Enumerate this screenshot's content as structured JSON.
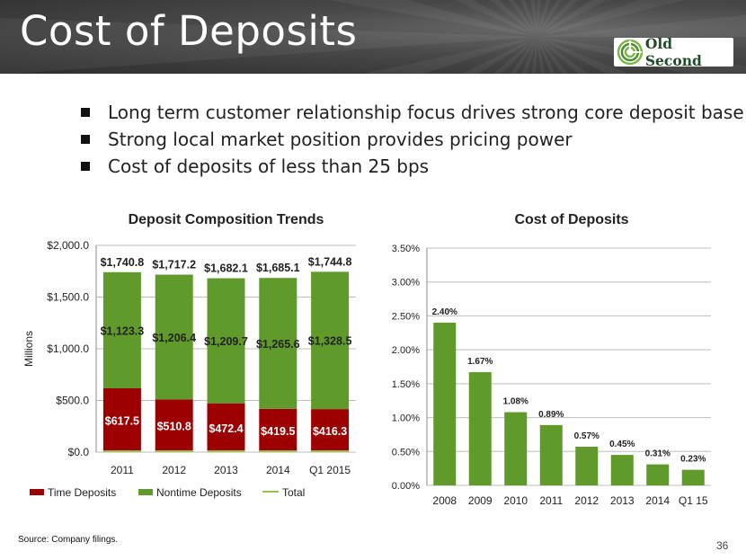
{
  "header": {
    "title": "Cost of Deposits",
    "logo_text": "Old Second"
  },
  "bullets": [
    "Long term customer relationship focus drives strong core deposit base",
    "Strong local market position provides pricing power",
    "Cost of deposits of less than 25 bps"
  ],
  "chart_data": [
    {
      "type": "bar",
      "stacked": true,
      "title": "Deposit Composition Trends",
      "ylabel": "Millions",
      "ylim": [
        0,
        2000
      ],
      "yticks": [
        "$0.0",
        "$500.0",
        "$1,000.0",
        "$1,500.0",
        "$2,000.0"
      ],
      "categories": [
        "2011",
        "2012",
        "2013",
        "2014",
        "Q1 2015"
      ],
      "series": [
        {
          "name": "Time Deposits",
          "color": "#9c0000",
          "values": [
            617.5,
            510.8,
            472.4,
            419.5,
            416.3
          ],
          "labels": [
            "$617.5",
            "$510.8",
            "$472.4",
            "$419.5",
            "$416.3"
          ]
        },
        {
          "name": "Nontime Deposits",
          "color": "#5f9a2a",
          "values": [
            1123.3,
            1206.4,
            1209.7,
            1265.6,
            1328.5
          ],
          "labels": [
            "$1,123.3",
            "$1,206.4",
            "$1,209.7",
            "$1,265.6",
            "$1,328.5"
          ]
        },
        {
          "name": "Total",
          "color": "#9bc34a",
          "values": [
            1740.8,
            1717.2,
            1682.1,
            1685.1,
            1744.8
          ],
          "labels": [
            "$1,740.8",
            "$1,717.2",
            "$1,682.1",
            "$1,685.1",
            "$1,744.8"
          ]
        }
      ],
      "grid": true,
      "legend": "bottom"
    },
    {
      "type": "bar",
      "title": "Cost of Deposits",
      "ylim": [
        0,
        3.5
      ],
      "yticks": [
        "0.00%",
        "0.50%",
        "1.00%",
        "1.50%",
        "2.00%",
        "2.50%",
        "3.00%",
        "3.50%"
      ],
      "categories": [
        "2008",
        "2009",
        "2010",
        "2011",
        "2012",
        "2013",
        "2014",
        "Q1 15"
      ],
      "values": [
        2.4,
        1.67,
        1.08,
        0.89,
        0.57,
        0.45,
        0.31,
        0.23
      ],
      "labels": [
        "2.40%",
        "1.67%",
        "1.08%",
        "0.89%",
        "0.57%",
        "0.45%",
        "0.31%",
        "0.23%"
      ],
      "color": "#5f9a2a",
      "grid": true
    }
  ],
  "footer": {
    "source": "Source: Company filings.",
    "page_number": "36"
  }
}
